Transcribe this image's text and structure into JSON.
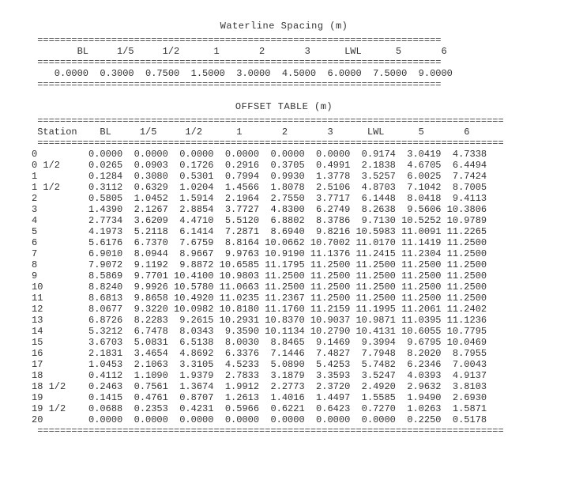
{
  "colors": {
    "background": "#ffffff",
    "text": "#333333",
    "rule": "#444444"
  },
  "typography": {
    "font_family": "Courier New, monospace",
    "font_size_pt": 9
  },
  "waterline_spacing": {
    "title": "Waterline Spacing (m)",
    "rule_char": "=",
    "rule_width": 71,
    "header_cells": [
      "BL",
      "1/5",
      "1/2",
      "1",
      "2",
      "3",
      "LWL",
      "5",
      "6"
    ],
    "header_col_width": 8,
    "header_indent": 5,
    "value_cells": [
      "0.0000",
      "0.3000",
      "0.7500",
      "1.5000",
      "3.0000",
      "4.5000",
      "6.0000",
      "7.5000",
      "9.0000"
    ],
    "value_col_width": 8,
    "value_indent": 2
  },
  "offset_table": {
    "title": "OFFSET TABLE (m)",
    "rule_char": "=",
    "rule_width": 82,
    "station_header": "Station",
    "station_col_width": 8,
    "data_col_width": 8,
    "columns": [
      "BL",
      "1/5",
      "1/2",
      "1",
      "2",
      "3",
      "LWL",
      "5",
      "6"
    ],
    "stations": [
      "0",
      "0 1/2",
      "1",
      "1 1/2",
      "2",
      "3",
      "4",
      "5",
      "6",
      "7",
      "8",
      "9",
      "10",
      "11",
      "12",
      "13",
      "14",
      "15",
      "16",
      "17",
      "18",
      "18 1/2",
      "19",
      "19 1/2",
      "20"
    ],
    "rows": [
      [
        "0.0000",
        "0.0000",
        "0.0000",
        "0.0000",
        "0.0000",
        "0.0000",
        "0.9174",
        "3.0419",
        "4.7338"
      ],
      [
        "0.0265",
        "0.0903",
        "0.1726",
        "0.2916",
        "0.3705",
        "0.4991",
        "2.1838",
        "4.6705",
        "6.4494"
      ],
      [
        "0.1284",
        "0.3080",
        "0.5301",
        "0.7994",
        "0.9930",
        "1.3778",
        "3.5257",
        "6.0025",
        "7.7424"
      ],
      [
        "0.3112",
        "0.6329",
        "1.0204",
        "1.4566",
        "1.8078",
        "2.5106",
        "4.8703",
        "7.1042",
        "8.7005"
      ],
      [
        "0.5805",
        "1.0452",
        "1.5914",
        "2.1964",
        "2.7550",
        "3.7717",
        "6.1448",
        "8.0418",
        "9.4113"
      ],
      [
        "1.4390",
        "2.1267",
        "2.8854",
        "3.7727",
        "4.8300",
        "6.2749",
        "8.2638",
        "9.5606",
        "10.3806"
      ],
      [
        "2.7734",
        "3.6209",
        "4.4710",
        "5.5120",
        "6.8802",
        "8.3786",
        "9.7130",
        "10.5252",
        "10.9789"
      ],
      [
        "4.1973",
        "5.2118",
        "6.1414",
        "7.2871",
        "8.6940",
        "9.8216",
        "10.5983",
        "11.0091",
        "11.2265"
      ],
      [
        "5.6176",
        "6.7370",
        "7.6759",
        "8.8164",
        "10.0662",
        "10.7002",
        "11.0170",
        "11.1419",
        "11.2500"
      ],
      [
        "6.9010",
        "8.0944",
        "8.9667",
        "9.9763",
        "10.9190",
        "11.1376",
        "11.2415",
        "11.2304",
        "11.2500"
      ],
      [
        "7.9072",
        "9.1192",
        "9.8872",
        "10.6585",
        "11.1795",
        "11.2500",
        "11.2500",
        "11.2500",
        "11.2500"
      ],
      [
        "8.5869",
        "9.7701",
        "10.4100",
        "10.9803",
        "11.2500",
        "11.2500",
        "11.2500",
        "11.2500",
        "11.2500"
      ],
      [
        "8.8240",
        "9.9926",
        "10.5780",
        "11.0663",
        "11.2500",
        "11.2500",
        "11.2500",
        "11.2500",
        "11.2500"
      ],
      [
        "8.6813",
        "9.8658",
        "10.4920",
        "11.0235",
        "11.2367",
        "11.2500",
        "11.2500",
        "11.2500",
        "11.2500"
      ],
      [
        "8.0677",
        "9.3220",
        "10.0982",
        "10.8180",
        "11.1760",
        "11.2159",
        "11.1995",
        "11.2061",
        "11.2402"
      ],
      [
        "6.8726",
        "8.2283",
        "9.2615",
        "10.2931",
        "10.8370",
        "10.9037",
        "10.9871",
        "11.0395",
        "11.1236"
      ],
      [
        "5.3212",
        "6.7478",
        "8.0343",
        "9.3590",
        "10.1134",
        "10.2790",
        "10.4131",
        "10.6055",
        "10.7795"
      ],
      [
        "3.6703",
        "5.0831",
        "6.5138",
        "8.0030",
        "8.8465",
        "9.1469",
        "9.3994",
        "9.6795",
        "10.0469"
      ],
      [
        "2.1831",
        "3.4654",
        "4.8692",
        "6.3376",
        "7.1446",
        "7.4827",
        "7.7948",
        "8.2020",
        "8.7955"
      ],
      [
        "1.0453",
        "2.1063",
        "3.3105",
        "4.5233",
        "5.0890",
        "5.4253",
        "5.7482",
        "6.2346",
        "7.0043"
      ],
      [
        "0.4112",
        "1.1090",
        "1.9379",
        "2.7833",
        "3.1879",
        "3.3593",
        "3.5247",
        "4.0393",
        "4.9137"
      ],
      [
        "0.2463",
        "0.7561",
        "1.3674",
        "1.9912",
        "2.2773",
        "2.3720",
        "2.4920",
        "2.9632",
        "3.8103"
      ],
      [
        "0.1415",
        "0.4761",
        "0.8707",
        "1.2613",
        "1.4016",
        "1.4497",
        "1.5585",
        "1.9490",
        "2.6930"
      ],
      [
        "0.0688",
        "0.2353",
        "0.4231",
        "0.5966",
        "0.6221",
        "0.6423",
        "0.7270",
        "1.0263",
        "1.5871"
      ],
      [
        "0.0000",
        "0.0000",
        "0.0000",
        "0.0000",
        "0.0000",
        "0.0000",
        "0.0000",
        "0.2250",
        "0.5178"
      ]
    ]
  }
}
